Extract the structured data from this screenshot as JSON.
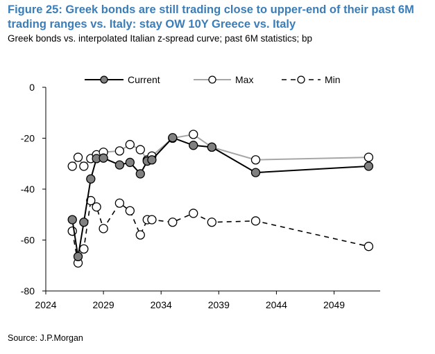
{
  "title": "Figure 25: Greek bonds are still trading close to upper-end of their past 6M trading ranges vs. Italy: stay OW 10Y Greece vs. Italy",
  "subtitle": "Greek bonds vs. interpolated Italian z-spread curve; past 6M statistics; bp",
  "source": "Source: J.P.Morgan",
  "colors": {
    "current_fill": "#808080",
    "current_line": "#000000",
    "max_line": "#a6a6a6",
    "min_line": "#000000"
  },
  "chart_data": {
    "type": "line",
    "x_ticks": [
      2024,
      2029,
      2034,
      2039,
      2044,
      2049
    ],
    "y_ticks": [
      0,
      -20,
      -40,
      -60,
      -80
    ],
    "xlim": [
      2024,
      2053
    ],
    "ylim": [
      -80,
      0
    ],
    "legend_position": "top",
    "series": [
      {
        "name": "Current",
        "x": [
          2026.3,
          2026.8,
          2027.3,
          2027.9,
          2028.4,
          2029.0,
          2030.4,
          2031.3,
          2032.2,
          2032.8,
          2033.2,
          2035.0,
          2036.8,
          2038.4,
          2042.2,
          2052.0
        ],
        "y": [
          -52.0,
          -66.5,
          -53.0,
          -36.0,
          -28.0,
          -27.8,
          -30.5,
          -29.5,
          -34.0,
          -29.0,
          -28.5,
          -19.8,
          -22.8,
          -23.5,
          -33.5,
          -31.0
        ]
      },
      {
        "name": "Max",
        "x": [
          2026.3,
          2026.8,
          2027.3,
          2027.9,
          2028.4,
          2029.0,
          2030.4,
          2031.3,
          2032.2,
          2032.8,
          2033.2,
          2035.0,
          2036.8,
          2038.4,
          2042.2,
          2052.0
        ],
        "y": [
          -31.0,
          -27.5,
          -31.0,
          -28.0,
          -26.5,
          -25.5,
          -25.0,
          -22.5,
          -24.5,
          -28.5,
          -27.0,
          -20.0,
          -18.5,
          -23.5,
          -28.5,
          -27.5
        ]
      },
      {
        "name": "Min",
        "x": [
          2026.3,
          2026.8,
          2027.3,
          2027.9,
          2028.4,
          2029.0,
          2030.4,
          2031.3,
          2032.2,
          2032.8,
          2033.2,
          2035.0,
          2036.8,
          2038.4,
          2042.2,
          2052.0
        ],
        "y": [
          -56.5,
          -69.0,
          -63.5,
          -44.5,
          -47.0,
          -55.5,
          -45.5,
          -48.5,
          -58.0,
          -52.0,
          -52.0,
          -53.0,
          -49.5,
          -53.0,
          -52.5,
          -62.5
        ]
      }
    ]
  }
}
